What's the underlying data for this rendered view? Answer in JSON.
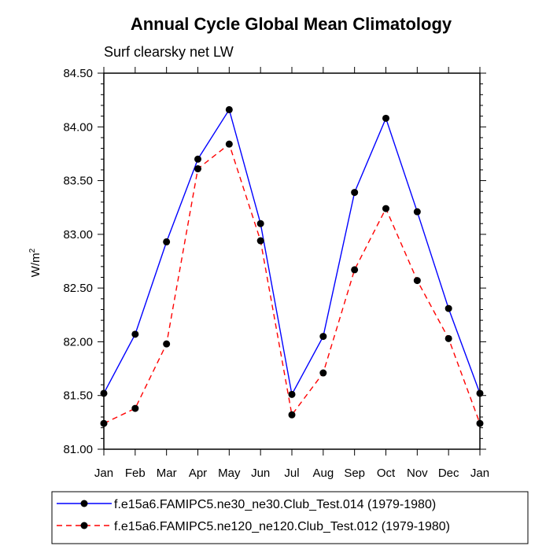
{
  "chart_data": {
    "type": "line",
    "title": "Annual Cycle Global Mean Climatology",
    "subtitle": "Surf clearsky net LW",
    "xlabel": "",
    "ylabel": "W/m",
    "ylabel_superscript": "2",
    "categories": [
      "Jan",
      "Feb",
      "Mar",
      "Apr",
      "May",
      "Jun",
      "Jul",
      "Aug",
      "Sep",
      "Oct",
      "Nov",
      "Dec",
      "Jan"
    ],
    "ylim": [
      81.0,
      84.5
    ],
    "yticks": [
      "81.00",
      "81.50",
      "82.00",
      "82.50",
      "83.00",
      "83.50",
      "84.00",
      "84.50"
    ],
    "series": [
      {
        "name": "f.e15a6.FAMIPC5.ne30_ne30.Club_Test.014 (1979-1980)",
        "color": "#0000ff",
        "dash": "solid",
        "values": [
          81.52,
          82.07,
          82.93,
          83.7,
          84.16,
          83.1,
          81.51,
          82.05,
          83.39,
          84.08,
          83.21,
          82.31,
          81.52
        ]
      },
      {
        "name": "f.e15a6.FAMIPC5.ne120_ne120.Club_Test.012 (1979-1980)",
        "color": "#ff0000",
        "dash": "dashed",
        "values": [
          81.24,
          81.38,
          81.98,
          83.61,
          83.84,
          82.94,
          81.32,
          81.71,
          82.67,
          83.24,
          82.57,
          82.03,
          81.24
        ]
      }
    ]
  }
}
